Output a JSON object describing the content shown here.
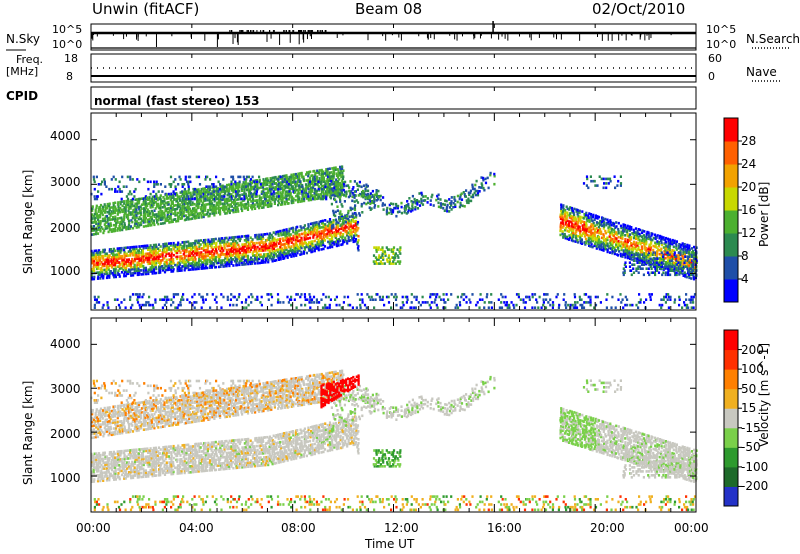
{
  "header": {
    "station": "Unwin (fitACF)",
    "beam": "Beam 08",
    "date": "02/Oct/2010"
  },
  "top_panels": {
    "nsky_label": "N.Sky",
    "nsky_ticks": [
      "10^5",
      "10^0"
    ],
    "nsearch_label": "N.Search",
    "nsearch_ticks": [
      "10^5",
      "10^0"
    ],
    "freq_label": "Freq.",
    "freq_unit": "[MHz]",
    "freq_ticks": [
      "18",
      "8"
    ],
    "nave_label": "Nave",
    "nave_ticks": [
      "60",
      "0"
    ],
    "cpid_label": "CPID",
    "cpid_value": "normal (fast stereo) 153"
  },
  "chart_data": [
    {
      "type": "heatmap",
      "name": "power-panel",
      "ylabel": "Slant Range [km]",
      "ylim": [
        180,
        4600
      ],
      "yticks": [
        "1000",
        "2000",
        "3000",
        "4000"
      ],
      "colorbar": {
        "label": "Power [dB]",
        "ticks": [
          "4",
          "8",
          "12",
          "16",
          "20",
          "24",
          "28"
        ],
        "colors": [
          "#0000ff",
          "#1f4fa8",
          "#2c8a50",
          "#4cb030",
          "#c8d800",
          "#f2a200",
          "#ff6000",
          "#ff0000"
        ]
      }
    },
    {
      "type": "heatmap",
      "name": "velocity-panel",
      "ylabel": "Slant Range [km]",
      "ylim": [
        180,
        4600
      ],
      "yticks": [
        "1000",
        "2000",
        "3000",
        "4000"
      ],
      "colorbar": {
        "label": "Velocity [m s^-1]",
        "ticks": [
          "200",
          "100",
          "50",
          "15",
          "-15",
          "-50",
          "-100",
          "-200"
        ],
        "colors": [
          "#2432c8",
          "#1e6a2a",
          "#2e9a2e",
          "#7ad04a",
          "#c8c8c0",
          "#f0b020",
          "#ff8000",
          "#ff3000",
          "#ff0000"
        ]
      }
    }
  ],
  "x_axis": {
    "label": "Time UT",
    "ticks": [
      "00:00",
      "04:00",
      "08:00",
      "12:00",
      "16:00",
      "20:00",
      "00:00"
    ]
  }
}
